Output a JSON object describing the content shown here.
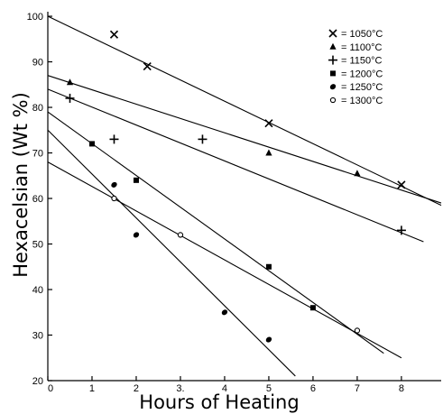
{
  "chart_data": {
    "type": "scatter",
    "title": "",
    "xlabel": "Hours of Heating",
    "ylabel": "Hexacelsian (Wt %)",
    "xlim": [
      0,
      8.9
    ],
    "ylim": [
      20,
      101
    ],
    "x_ticks": [
      0,
      1,
      2,
      3,
      4,
      5,
      6,
      7,
      8
    ],
    "y_ticks": [
      20,
      30,
      40,
      50,
      60,
      70,
      80,
      90,
      100
    ],
    "x_tick_labels": [
      "0",
      "1",
      "2",
      "3.",
      "4",
      "5",
      "6",
      "7",
      "8"
    ],
    "y_tick_labels": [
      "20",
      "30",
      "40",
      "50",
      "60",
      "70",
      "80",
      "90",
      "100"
    ],
    "grid": false,
    "legend_position": "top-right",
    "series": [
      {
        "name": "= 1050°C",
        "marker": "x",
        "points": [
          [
            1.5,
            96
          ],
          [
            2.25,
            89
          ],
          [
            5,
            76.5
          ],
          [
            8,
            63
          ]
        ],
        "fit": [
          [
            0,
            100
          ],
          [
            8.9,
            58.5
          ]
        ]
      },
      {
        "name": "= 1100°C",
        "marker": "triangle",
        "points": [
          [
            0.5,
            85.5
          ],
          [
            5,
            70
          ],
          [
            7,
            65.5
          ]
        ],
        "fit": [
          [
            0,
            87
          ],
          [
            8.9,
            59
          ]
        ]
      },
      {
        "name": "= 1150°C",
        "marker": "plus",
        "points": [
          [
            0.5,
            82
          ],
          [
            1.5,
            73
          ],
          [
            3.5,
            73
          ],
          [
            8,
            53
          ]
        ],
        "fit": [
          [
            0,
            84
          ],
          [
            8.5,
            50.5
          ]
        ]
      },
      {
        "name": "= 1200°C",
        "marker": "square",
        "points": [
          [
            1,
            72
          ],
          [
            2,
            64
          ],
          [
            5,
            45
          ],
          [
            6,
            36
          ]
        ],
        "fit": [
          [
            0,
            79
          ],
          [
            7.6,
            26
          ]
        ]
      },
      {
        "name": "= 1250°C",
        "marker": "filled-circle",
        "points": [
          [
            1.5,
            63
          ],
          [
            2,
            52
          ],
          [
            4,
            35
          ],
          [
            5,
            29
          ]
        ],
        "fit": [
          [
            0,
            75
          ],
          [
            5.6,
            21
          ]
        ]
      },
      {
        "name": "= 1300°C",
        "marker": "open-circle",
        "points": [
          [
            1.5,
            60
          ],
          [
            3,
            52
          ],
          [
            7,
            31
          ]
        ],
        "fit": [
          [
            0,
            68
          ],
          [
            8,
            25
          ]
        ]
      }
    ]
  }
}
